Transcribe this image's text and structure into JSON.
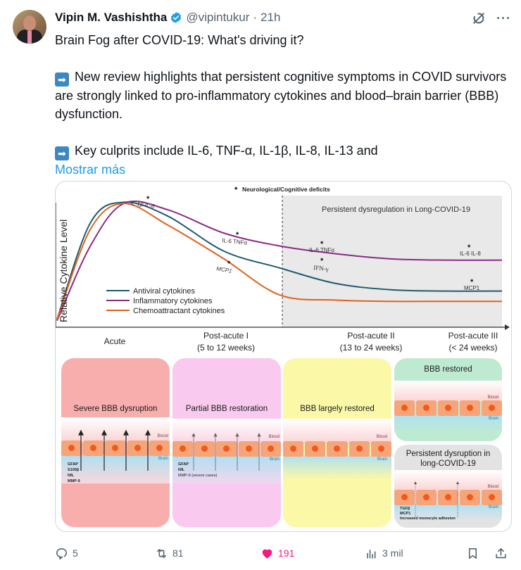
{
  "post": {
    "author": {
      "display_name": "Vipin M. Vashishtha",
      "handle": "@vipintukur",
      "time": "21h",
      "separator": "·",
      "verified": true
    },
    "text": {
      "line1": "Brain Fog after COVID-19: What's driving it?",
      "para2": "New review highlights that persistent cognitive symptoms in COVID survivors are strongly linked to pro-inflammatory cytokines and blood–brain barrier (BBB) dysfunction.",
      "para3": "Key culprits include IL-6, TNF-α, IL-1β, IL-8, IL-13 and",
      "show_more": "Mostrar más"
    },
    "icons": [
      "grok-icon",
      "more-icon",
      "arrow-right-emoji",
      "verified-badge-icon"
    ],
    "colors": {
      "accent": "#1d9bf0",
      "like": "#f91880",
      "secondary_text": "#536471"
    }
  },
  "figure": {
    "footnote": "Neurological/Cognitive deficits",
    "shaded_region_label": "Persistent dysregulation in Long-COVID-19",
    "y_axis_label": "Relative Cytokine Level",
    "phases": [
      {
        "name": "Acute",
        "range": ""
      },
      {
        "name": "Post-acute I",
        "range": "(5 to 12 weeks)"
      },
      {
        "name": "Post-acute II",
        "range": "(13 to 24 weeks)"
      },
      {
        "name": "Post-acute III",
        "range": "(< 24 weeks)"
      }
    ],
    "legend": [
      {
        "name": "Antiviral cytokines",
        "color": "#1d5b6e"
      },
      {
        "name": "Inflammatory cytokines",
        "color": "#8a2a86"
      },
      {
        "name": "Chemoattractant cytokines",
        "color": "#e0621c"
      }
    ],
    "annotations": {
      "peak": [
        "IL-1β",
        "IL-6"
      ],
      "post_acute_1_inflammatory": [
        "IL-6",
        "TNFα"
      ],
      "post_acute_1_chemo": "MCP1",
      "post_acute_2_inflammatory": [
        "IL-6",
        "TNFα"
      ],
      "post_acute_2_antiviral": "IFN-γ",
      "post_acute_3_inflammatory": [
        "IL-6",
        "IL-8"
      ],
      "post_acute_3_chemo": "MCP1"
    },
    "panels": {
      "severe": {
        "title": "Severe BBB dysruption",
        "markers": [
          "GFAP",
          "S100β",
          "NfL",
          "MMP-9"
        ],
        "color": "#f9aeae"
      },
      "partial": {
        "title": "Partial BBB restoration",
        "markers": [
          "GFAP",
          "NfL",
          "MMP-9 (severe cases)"
        ],
        "color": "#f9c9ef"
      },
      "largely": {
        "title": "BBB largely restored",
        "color": "#fbf8a8"
      },
      "restored": {
        "title": "BBB restored",
        "color": "#bfead2"
      },
      "persistent": {
        "title_line1": "Persistent dysruption in",
        "title_line2": "long-COVID-19",
        "markers": [
          "TGFβ",
          "MCP1",
          "Increased monocyte adhesion"
        ],
        "color": "#e3e3e3"
      },
      "blood_label": "Blood",
      "brain_label": "Brain"
    }
  },
  "chart_data": {
    "type": "line",
    "title": "",
    "xlabel": "",
    "ylabel": "Relative Cytokine Level",
    "categories": [
      "Acute",
      "Post-acute I (5 to 12 weeks)",
      "Post-acute II (13 to 24 weeks)",
      "Post-acute III (< 24 weeks)"
    ],
    "x": [
      0,
      0.3,
      0.6,
      1.0,
      1.5,
      2.0,
      2.5,
      3.0,
      3.5,
      4.0
    ],
    "series": [
      {
        "name": "Antiviral cytokines",
        "values": [
          0.05,
          0.8,
          0.96,
          0.85,
          0.58,
          0.45,
          0.33,
          0.28,
          0.27,
          0.27
        ]
      },
      {
        "name": "Inflammatory cytokines",
        "values": [
          0.04,
          0.62,
          0.95,
          0.9,
          0.72,
          0.62,
          0.56,
          0.52,
          0.51,
          0.51
        ]
      },
      {
        "name": "Chemoattractant cytokines",
        "values": [
          0.05,
          0.75,
          0.95,
          0.78,
          0.52,
          0.24,
          0.2,
          0.19,
          0.19,
          0.19
        ]
      }
    ],
    "ylim": [
      0,
      1
    ],
    "grid": false,
    "legend_position": "bottom-left",
    "shaded_region": {
      "from_x": 2.0,
      "to_x": 4.0,
      "label": "Persistent dysregulation in Long-COVID-19"
    }
  },
  "actions": {
    "replies": "5",
    "reposts": "81",
    "likes": "191",
    "views": "3 mil",
    "liked": true
  }
}
